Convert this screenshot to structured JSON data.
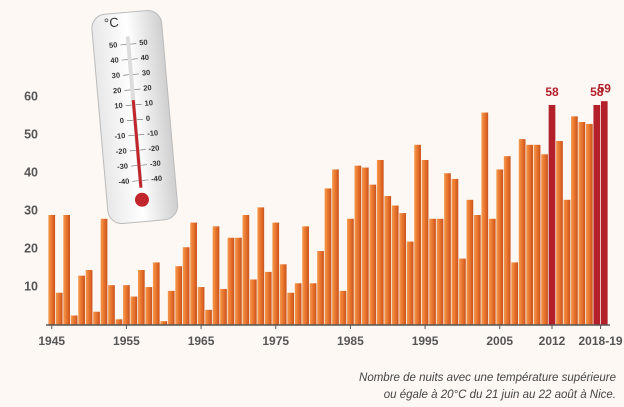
{
  "chart_data": {
    "type": "bar",
    "x": [
      1945,
      1946,
      1947,
      1948,
      1949,
      1950,
      1951,
      1952,
      1953,
      1954,
      1955,
      1956,
      1957,
      1958,
      1959,
      1960,
      1961,
      1962,
      1963,
      1964,
      1965,
      1966,
      1967,
      1968,
      1969,
      1970,
      1971,
      1972,
      1973,
      1974,
      1975,
      1976,
      1977,
      1978,
      1979,
      1980,
      1981,
      1982,
      1983,
      1984,
      1985,
      1986,
      1987,
      1988,
      1989,
      1990,
      1991,
      1992,
      1993,
      1994,
      1995,
      1996,
      1997,
      1998,
      1999,
      2000,
      2001,
      2002,
      2003,
      2004,
      2005,
      2006,
      2007,
      2008,
      2009,
      2010,
      2011,
      2012,
      2013,
      2014,
      2015,
      2016,
      2017,
      2018,
      2019
    ],
    "values": [
      29,
      8.5,
      29,
      2.5,
      13,
      14.5,
      3.5,
      28,
      10.5,
      1.5,
      10.5,
      7.5,
      14.5,
      10,
      16.5,
      1,
      9,
      15.5,
      20.5,
      27,
      10,
      4,
      26,
      9.5,
      23,
      23,
      29,
      12,
      31,
      14,
      27,
      16,
      8.5,
      11,
      26,
      11,
      19.5,
      36,
      41,
      9,
      28,
      42,
      41.5,
      37,
      43.5,
      34,
      31.5,
      29.5,
      22,
      47.5,
      43.5,
      28,
      28,
      40,
      38.5,
      17.5,
      33,
      29,
      56,
      28,
      41,
      44.5,
      16.5,
      49,
      47.5,
      47.5,
      45,
      58,
      48.5,
      33,
      55,
      53.5,
      53,
      58,
      59
    ],
    "color": "#e9742c",
    "highlight": [
      2012,
      2018,
      2019
    ],
    "highlight_color": "#b3202a",
    "xlim": [
      1944.5,
      2019.5
    ],
    "xticks": [
      1945,
      1955,
      1965,
      1975,
      1985,
      1995,
      2005,
      2012,
      {
        "value": 2018.5,
        "label": "2018-19"
      }
    ],
    "ylim": [
      0,
      63
    ],
    "yticks": [
      10,
      20,
      30,
      40,
      50,
      60
    ],
    "caption": [
      "Nombre de nuits avec une température supérieure",
      "ou égale à 20°C du 21 juin au 22 août à Nice."
    ]
  },
  "thermometer": {
    "unit": "°C",
    "scale": [
      50,
      40,
      30,
      20,
      10,
      0,
      -10,
      -20,
      -30,
      -40
    ]
  }
}
